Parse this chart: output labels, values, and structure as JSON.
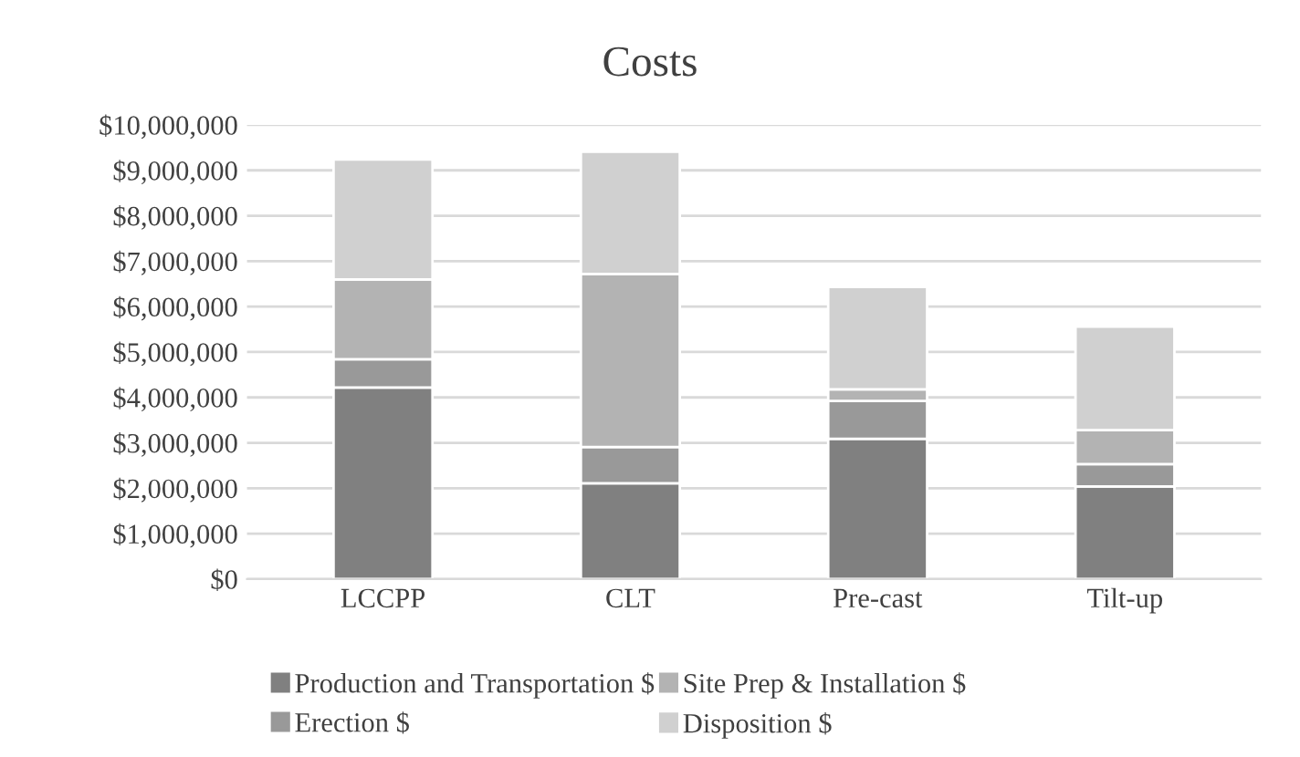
{
  "chart_data": {
    "type": "bar",
    "title": "Costs",
    "stacked": true,
    "categories": [
      "LCCPP",
      "CLT",
      "Pre-cast",
      "Tilt-up"
    ],
    "series": [
      {
        "name": "Production and Transportation $",
        "color": "#808080",
        "values": [
          4220000,
          2110000,
          3090000,
          2040000
        ]
      },
      {
        "name": "Erection $",
        "color": "#999999",
        "values": [
          620000,
          800000,
          830000,
          490000
        ]
      },
      {
        "name": "Site Prep & Installation $",
        "color": "#b3b3b3",
        "values": [
          1760000,
          3810000,
          260000,
          750000
        ]
      },
      {
        "name": "Disposition $",
        "color": "#d0d0d0",
        "values": [
          2640000,
          2690000,
          2250000,
          2280000
        ]
      }
    ],
    "ylim": [
      0,
      10000000
    ],
    "yticks": [
      {
        "value": 0,
        "label": "$0"
      },
      {
        "value": 1000000,
        "label": "$1,000,000"
      },
      {
        "value": 2000000,
        "label": "$2,000,000"
      },
      {
        "value": 3000000,
        "label": "$3,000,000"
      },
      {
        "value": 4000000,
        "label": "$4,000,000"
      },
      {
        "value": 5000000,
        "label": "$5,000,000"
      },
      {
        "value": 6000000,
        "label": "$6,000,000"
      },
      {
        "value": 7000000,
        "label": "$7,000,000"
      },
      {
        "value": 8000000,
        "label": "$8,000,000"
      },
      {
        "value": 9000000,
        "label": "$9,000,000"
      },
      {
        "value": 10000000,
        "label": "$10,000,000"
      }
    ],
    "grid": "y",
    "legend": "bottom"
  }
}
